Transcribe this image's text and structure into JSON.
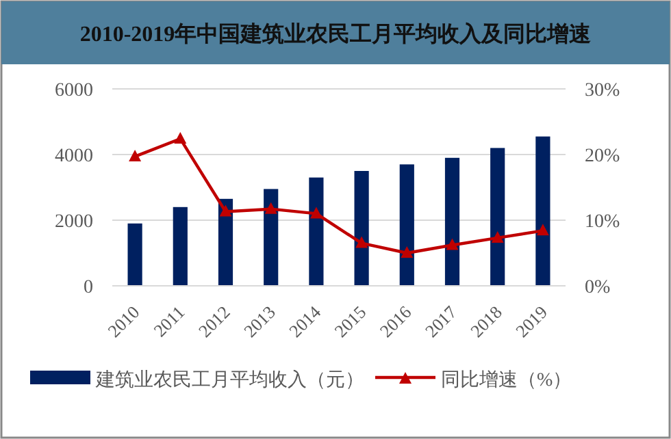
{
  "chart_data": {
    "type": "bar",
    "title": "2010-2019年中国建筑业农民工月平均收入及同比增速",
    "categories": [
      "2010",
      "2011",
      "2012",
      "2013",
      "2014",
      "2015",
      "2016",
      "2017",
      "2018",
      "2019"
    ],
    "series": [
      {
        "name": "建筑业农民工月平均收入（元）",
        "color": "#002060",
        "values": [
          1900,
          2400,
          2650,
          2950,
          3300,
          3500,
          3700,
          3900,
          4200,
          4550
        ]
      },
      {
        "name": "同比增速（%）",
        "type": "line",
        "axis": "y2",
        "color": "#c00000",
        "marker": "triangle",
        "values": [
          19.7,
          22.4,
          11.3,
          11.7,
          11.0,
          6.5,
          5.0,
          6.2,
          7.3,
          8.4
        ]
      }
    ],
    "ylim": [
      0,
      6000
    ],
    "yticks": [
      0,
      2000,
      4000,
      6000
    ],
    "y2lim": [
      0,
      30
    ],
    "y2ticks": [
      {
        "value": 0,
        "label": "0%"
      },
      {
        "value": 10,
        "label": "10%"
      },
      {
        "value": 20,
        "label": "20%"
      },
      {
        "value": 30,
        "label": "30%"
      }
    ],
    "grid": "y",
    "legend": "bottom"
  }
}
